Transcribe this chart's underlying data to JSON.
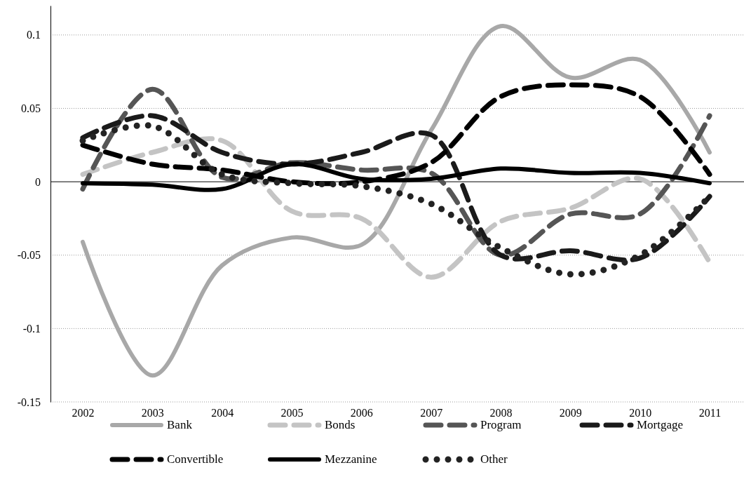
{
  "chart_data": {
    "type": "line",
    "categories": [
      "2002",
      "2003",
      "2004",
      "2005",
      "2006",
      "2007",
      "2008",
      "2009",
      "2010",
      "2011"
    ],
    "ylim": [
      -0.15,
      0.12
    ],
    "yticks": [
      -0.15,
      -0.1,
      -0.05,
      0,
      0.05,
      0.1
    ],
    "grid": "y",
    "legend": "bottom",
    "marker": "none",
    "series": [
      {
        "name": "Bank",
        "color": "#a8a8a8",
        "line_style": "solid",
        "values": [
          -0.041,
          -0.132,
          -0.057,
          -0.038,
          -0.043,
          0.035,
          0.106,
          0.071,
          0.083,
          0.02
        ]
      },
      {
        "name": "Bonds",
        "color": "#c4c4c4",
        "line_style": "dashed",
        "values": [
          0.005,
          0.02,
          0.028,
          -0.02,
          -0.025,
          -0.065,
          -0.027,
          -0.018,
          0.002,
          -0.055
        ]
      },
      {
        "name": "Program",
        "color": "#555555",
        "line_style": "dashed",
        "values": [
          -0.005,
          0.063,
          0.003,
          0.013,
          0.008,
          0.006,
          -0.05,
          -0.022,
          -0.022,
          0.045
        ]
      },
      {
        "name": "Mortgage",
        "color": "#1a1a1a",
        "line_style": "dashed",
        "values": [
          0.03,
          0.045,
          0.02,
          0.012,
          0.02,
          0.032,
          -0.05,
          -0.047,
          -0.052,
          -0.01
        ]
      },
      {
        "name": "Convertible",
        "color": "#000000",
        "line_style": "dashed",
        "values": [
          0.025,
          0.012,
          0.008,
          0.0,
          0.0,
          0.013,
          0.058,
          0.066,
          0.058,
          0.005
        ]
      },
      {
        "name": "Mezzanine",
        "color": "#000000",
        "line_style": "solid",
        "values": [
          -0.001,
          -0.002,
          -0.005,
          0.012,
          0.002,
          0.002,
          0.009,
          0.006,
          0.006,
          -0.001
        ]
      },
      {
        "name": "Other",
        "color": "#222222",
        "line_style": "dotted",
        "values": [
          0.028,
          0.038,
          0.005,
          -0.001,
          -0.003,
          -0.015,
          -0.045,
          -0.063,
          -0.05,
          -0.01
        ]
      }
    ]
  }
}
